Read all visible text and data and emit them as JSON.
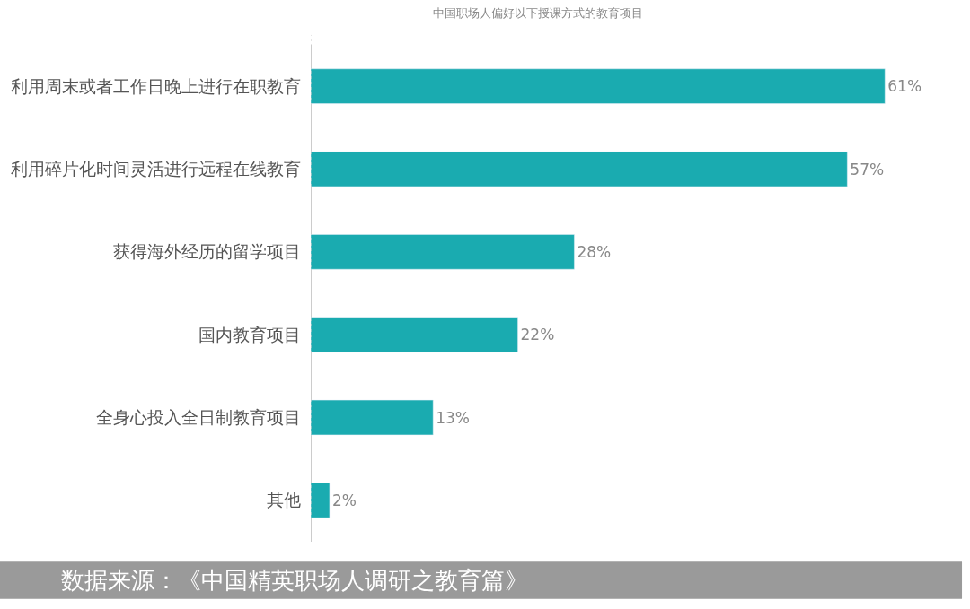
{
  "chart_data": {
    "type": "bar",
    "orientation": "horizontal",
    "title": "中国职场人偏好以下授课方式的教育项目",
    "categories": [
      "利用周末或者工作日晚上进行在职教育",
      "利用碎片化时间灵活进行远程在线教育",
      "获得海外经历的留学项目",
      "国内教育项目",
      "全身心投入全日制教育项目",
      "其他"
    ],
    "values": [
      61,
      57,
      28,
      22,
      13,
      2
    ],
    "value_labels": [
      "61%",
      "57%",
      "28%",
      "22%",
      "13%",
      "2%"
    ],
    "color": "#1aabb0",
    "annotations": [
      "数据来源：《中国精英职场人调研之教育篇》"
    ]
  }
}
